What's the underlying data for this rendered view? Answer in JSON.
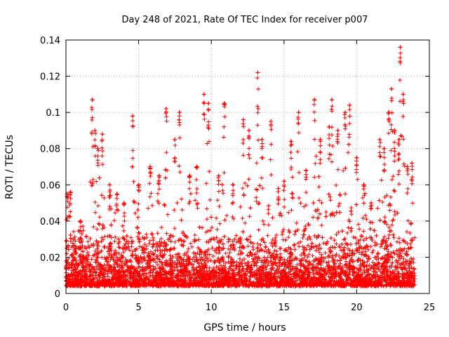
{
  "chart_data": {
    "type": "scatter",
    "title": "Day 248 of 2021, Rate Of TEC Index for receiver p007",
    "xlabel": "GPS time / hours",
    "ylabel": "ROTI / TECUs",
    "xlim": [
      0,
      25
    ],
    "ylim": [
      0,
      0.14
    ],
    "xticks": [
      0,
      5,
      10,
      15,
      20,
      25
    ],
    "xtick_labels": [
      "0",
      "5",
      "10",
      "15",
      "20",
      "25"
    ],
    "yticks": [
      0,
      0.02,
      0.04,
      0.06,
      0.08,
      0.1,
      0.12,
      0.14
    ],
    "ytick_labels": [
      "0",
      "0.02",
      "0.04",
      "0.06",
      "0.08",
      "0.1",
      "0.12",
      "0.14"
    ],
    "grid": true,
    "marker": "+",
    "series": [
      {
        "name": "ROTI",
        "color": "#ff0000",
        "notes": "dense scatter over 0-24 h, baseline ~0.005-0.02 TECU/min with frequent spikes",
        "peaks": [
          {
            "x": 0.1,
            "y": 0.055
          },
          {
            "x": 0.3,
            "y": 0.056
          },
          {
            "x": 1.0,
            "y": 0.04
          },
          {
            "x": 1.8,
            "y": 0.107
          },
          {
            "x": 2.0,
            "y": 0.09
          },
          {
            "x": 2.2,
            "y": 0.08
          },
          {
            "x": 2.5,
            "y": 0.088
          },
          {
            "x": 3.0,
            "y": 0.06
          },
          {
            "x": 3.5,
            "y": 0.055
          },
          {
            "x": 4.0,
            "y": 0.05
          },
          {
            "x": 4.6,
            "y": 0.098
          },
          {
            "x": 5.0,
            "y": 0.06
          },
          {
            "x": 5.8,
            "y": 0.07
          },
          {
            "x": 6.4,
            "y": 0.065
          },
          {
            "x": 6.9,
            "y": 0.102
          },
          {
            "x": 7.5,
            "y": 0.085
          },
          {
            "x": 7.8,
            "y": 0.1
          },
          {
            "x": 8.5,
            "y": 0.065
          },
          {
            "x": 9.0,
            "y": 0.07
          },
          {
            "x": 9.5,
            "y": 0.11
          },
          {
            "x": 9.8,
            "y": 0.105
          },
          {
            "x": 10.5,
            "y": 0.065
          },
          {
            "x": 10.9,
            "y": 0.105
          },
          {
            "x": 11.5,
            "y": 0.06
          },
          {
            "x": 12.2,
            "y": 0.096
          },
          {
            "x": 12.6,
            "y": 0.09
          },
          {
            "x": 13.2,
            "y": 0.122
          },
          {
            "x": 13.5,
            "y": 0.085
          },
          {
            "x": 14.1,
            "y": 0.095
          },
          {
            "x": 14.6,
            "y": 0.058
          },
          {
            "x": 15.0,
            "y": 0.062
          },
          {
            "x": 15.5,
            "y": 0.084
          },
          {
            "x": 16.0,
            "y": 0.1
          },
          {
            "x": 16.5,
            "y": 0.068
          },
          {
            "x": 17.1,
            "y": 0.107
          },
          {
            "x": 17.5,
            "y": 0.085
          },
          {
            "x": 18.1,
            "y": 0.092
          },
          {
            "x": 18.3,
            "y": 0.107
          },
          {
            "x": 18.7,
            "y": 0.09
          },
          {
            "x": 19.2,
            "y": 0.1
          },
          {
            "x": 19.5,
            "y": 0.104
          },
          {
            "x": 20.0,
            "y": 0.075
          },
          {
            "x": 20.5,
            "y": 0.06
          },
          {
            "x": 21.0,
            "y": 0.05
          },
          {
            "x": 21.6,
            "y": 0.085
          },
          {
            "x": 21.9,
            "y": 0.08
          },
          {
            "x": 22.2,
            "y": 0.1
          },
          {
            "x": 22.4,
            "y": 0.113
          },
          {
            "x": 22.6,
            "y": 0.09
          },
          {
            "x": 22.9,
            "y": 0.085
          },
          {
            "x": 23.0,
            "y": 0.136
          },
          {
            "x": 23.2,
            "y": 0.11
          },
          {
            "x": 23.5,
            "y": 0.07
          },
          {
            "x": 23.8,
            "y": 0.072
          }
        ]
      }
    ]
  }
}
